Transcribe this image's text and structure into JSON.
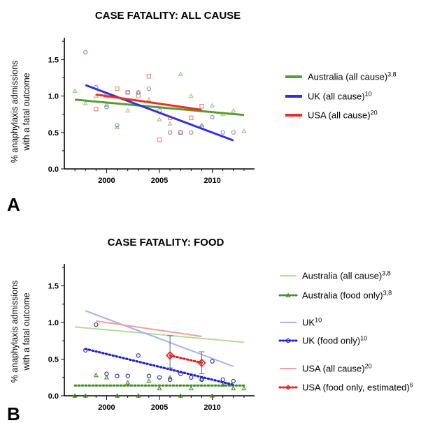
{
  "figure": {
    "panel_a_letter": "A",
    "panel_b_letter": "B"
  },
  "chart_data": [
    {
      "type": "scatter",
      "title": "CASE FATALITY: ALL CAUSE",
      "ylabel_line1": "% anaphylaxis admissions",
      "ylabel_line2": "with a fatal outcome",
      "xlabel": "",
      "xlim": [
        1996,
        2014
      ],
      "ylim": [
        0,
        1.8
      ],
      "xticks": [
        2000,
        2005,
        2010
      ],
      "xtick_labels": [
        "2000",
        "2005",
        "2010"
      ],
      "yticks": [
        0,
        0.5,
        1.0,
        1.5
      ],
      "ytick_labels": [
        "0.0",
        "0.5",
        "1.0",
        "1.5"
      ],
      "grid": false,
      "legend_position": "right",
      "series": [
        {
          "name": "Australia (all cause)",
          "superscript": "3,8",
          "color": "#5a9a2e",
          "marker": "triangle",
          "x": [
            1997,
            1998,
            1999,
            2000,
            2001,
            2002,
            2003,
            2004,
            2005,
            2006,
            2007,
            2008,
            2009,
            2010,
            2011,
            2012,
            2013
          ],
          "y": [
            1.07,
            0.9,
            1.0,
            0.88,
            0.57,
            0.8,
            1.05,
            0.95,
            0.68,
            0.62,
            1.3,
            1.0,
            0.6,
            0.87,
            0.75,
            0.8,
            0.52
          ],
          "trend": [
            [
              1997,
              0.95
            ],
            [
              2013,
              0.74
            ]
          ]
        },
        {
          "name": "UK (all cause)",
          "superscript": "10",
          "color": "#3030d8",
          "marker": "circle",
          "x": [
            1998,
            1999,
            2000,
            2001,
            2002,
            2003,
            2004,
            2005,
            2006,
            2007,
            2008,
            2009,
            2010,
            2011,
            2012
          ],
          "y": [
            1.6,
            1.12,
            0.85,
            0.6,
            1.05,
            1.05,
            1.1,
            0.8,
            0.5,
            0.5,
            0.5,
            0.58,
            0.71,
            0.5,
            0.5
          ],
          "trend": [
            [
              1998,
              1.15
            ],
            [
              2012,
              0.39
            ]
          ]
        },
        {
          "name": "USA (all cause)",
          "superscript": "20",
          "color": "#e83020",
          "marker": "square",
          "x": [
            1999,
            2000,
            2001,
            2002,
            2003,
            2004,
            2005,
            2006,
            2007,
            2008,
            2009
          ],
          "y": [
            0.82,
            1.0,
            1.1,
            1.05,
            1.0,
            1.27,
            0.4,
            0.7,
            0.5,
            0.7,
            0.86
          ],
          "trend": [
            [
              1999,
              1.02
            ],
            [
              2009,
              0.81
            ]
          ]
        }
      ]
    },
    {
      "type": "scatter",
      "title": "CASE FATALITY: FOOD",
      "ylabel_line1": "% anaphylaxis admissions",
      "ylabel_line2": "with a fatal outcome",
      "xlabel": "",
      "xlim": [
        1996,
        2014
      ],
      "ylim": [
        0,
        1.8
      ],
      "xticks": [
        2000,
        2005,
        2010
      ],
      "xtick_labels": [
        "2000",
        "2005",
        "2010"
      ],
      "yticks": [
        0,
        0.5,
        1.0,
        1.5
      ],
      "ytick_labels": [
        "0.0",
        "0.5",
        "1.0",
        "1.5"
      ],
      "grid": false,
      "legend_position": "right",
      "series": [
        {
          "name": "Australia (all cause)",
          "superscript": "3,8",
          "color": "#b8d89a",
          "style": "faded-trend",
          "trend": [
            [
              1997,
              0.94
            ],
            [
              2013,
              0.73
            ]
          ]
        },
        {
          "name": "Australia (food only)",
          "superscript": "3,8",
          "color": "#4a8a22",
          "marker": "triangle",
          "x": [
            1997,
            1998,
            1999,
            2000,
            2001,
            2002,
            2003,
            2004,
            2005,
            2006,
            2007,
            2008,
            2009,
            2010,
            2011,
            2012,
            2013
          ],
          "y": [
            0.0,
            0.0,
            0.28,
            0.25,
            0.0,
            0.18,
            0.0,
            0.2,
            0.1,
            0.25,
            0.0,
            0.1,
            0.23,
            0.0,
            0.15,
            0.1,
            0.1
          ],
          "trend": [
            [
              1997,
              0.14
            ],
            [
              2013,
              0.14
            ]
          ]
        },
        {
          "name": "UK",
          "superscript": "10",
          "color": "#a8b0ee",
          "style": "faded-trend",
          "trend": [
            [
              1998,
              1.16
            ],
            [
              2012,
              0.4
            ]
          ]
        },
        {
          "name": "UK (food only)",
          "superscript": "10",
          "color": "#2020d0",
          "marker": "circle",
          "x": [
            1998,
            1999,
            2000,
            2001,
            2002,
            2003,
            2004,
            2005,
            2006,
            2007,
            2008,
            2009,
            2010,
            2011,
            2012
          ],
          "y": [
            0.62,
            0.97,
            0.3,
            0.27,
            0.27,
            0.55,
            0.27,
            0.25,
            0.22,
            0.3,
            0.25,
            0.22,
            0.47,
            0.22,
            0.2
          ],
          "trend": [
            [
              1998,
              0.64
            ],
            [
              2012,
              0.15
            ]
          ]
        },
        {
          "name": "USA (all cause)",
          "superscript": "20",
          "color": "#f0a0a0",
          "style": "faded-trend",
          "trend": [
            [
              1999,
              1.02
            ],
            [
              2009,
              0.81
            ]
          ]
        },
        {
          "name": "USA (food only, estimated)",
          "superscript": "6",
          "color": "#e02020",
          "marker": "diamond",
          "x": [
            2006,
            2009
          ],
          "y": [
            0.55,
            0.45
          ],
          "yerr_low": [
            0.38,
            0.3
          ],
          "yerr_high": [
            0.82,
            0.6
          ],
          "trend": [
            [
              2006,
              0.55
            ],
            [
              2009,
              0.45
            ]
          ]
        }
      ]
    }
  ]
}
